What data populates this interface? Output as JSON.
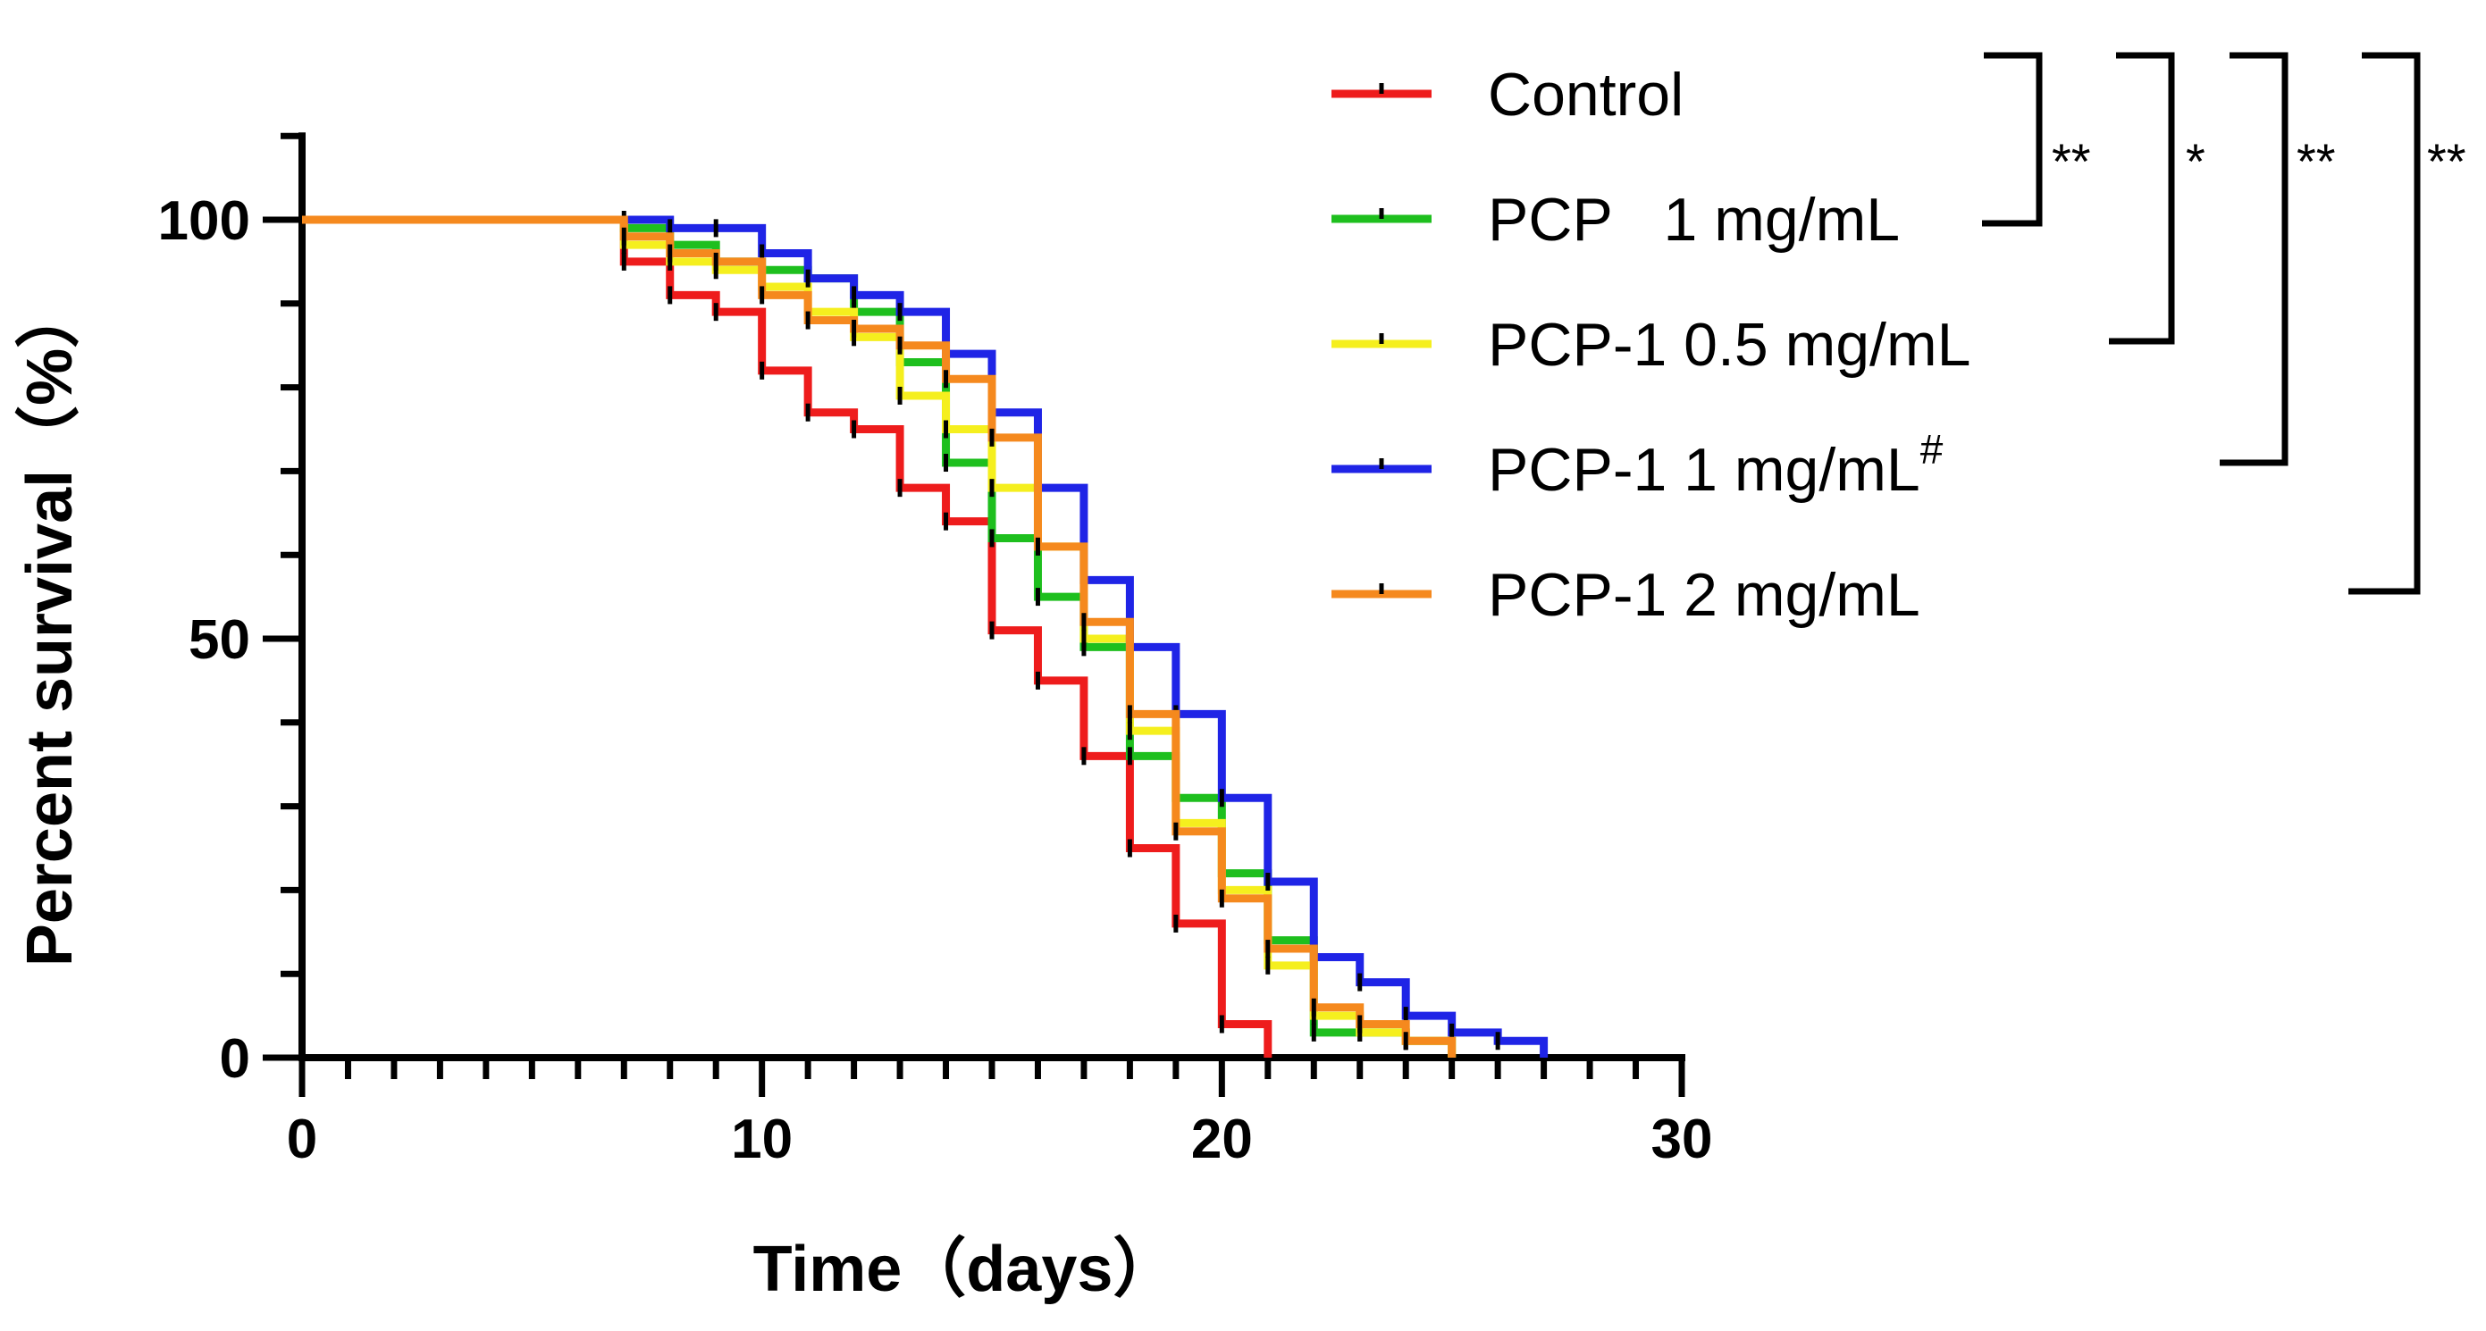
{
  "chart_data": {
    "type": "line",
    "subtype": "kaplan-meier step survival curve",
    "xlabel": "Time（days）",
    "ylabel": "Percent survival（%）",
    "xlim": [
      0,
      30
    ],
    "ylim": [
      0,
      110
    ],
    "x_ticks": [
      0,
      10,
      20,
      30
    ],
    "x_tick_labels": [
      "0",
      "10",
      "20",
      "30"
    ],
    "y_ticks": [
      0,
      50,
      100
    ],
    "y_tick_labels": [
      "0",
      "50",
      "100"
    ],
    "grid": false,
    "legend_position": "top-right",
    "series": [
      {
        "name": "Control",
        "legend_main": "Control",
        "legend_sup": "",
        "color": "#ee1c1c",
        "x": [
          0,
          7,
          8,
          9,
          10,
          11,
          12,
          13,
          14,
          15,
          16,
          17,
          18,
          19,
          20,
          21
        ],
        "y": [
          100,
          95,
          91,
          89,
          82,
          77,
          75,
          68,
          64,
          51,
          45,
          36,
          25,
          16,
          4,
          0
        ]
      },
      {
        "name": "PCP 1 mg/mL",
        "legend_main": "PCP   1 mg/mL",
        "legend_sup": "",
        "color": "#1ebf1e",
        "x": [
          0,
          7,
          8,
          9,
          10,
          11,
          12,
          13,
          14,
          15,
          16,
          17,
          18,
          19,
          20,
          21,
          22,
          23,
          24,
          25
        ],
        "y": [
          100,
          99,
          97,
          95,
          94,
          93,
          89,
          83,
          71,
          62,
          55,
          49,
          36,
          31,
          22,
          14,
          3,
          3,
          2,
          0
        ]
      },
      {
        "name": "PCP-1 0.5 mg/mL",
        "legend_main": "PCP-1 0.5 mg/mL",
        "legend_sup": "",
        "color": "#f5ef1e",
        "x": [
          0,
          7,
          8,
          9,
          10,
          11,
          12,
          13,
          14,
          15,
          16,
          17,
          18,
          19,
          20,
          21,
          22,
          23,
          24,
          25
        ],
        "y": [
          100,
          97,
          95,
          94,
          92,
          89,
          86,
          79,
          75,
          68,
          61,
          50,
          39,
          28,
          20,
          11,
          5,
          3,
          2,
          0
        ]
      },
      {
        "name": "PCP-1 1 mg/mL#",
        "legend_main": "PCP-1 1 mg/mL",
        "legend_sup": "#",
        "color": "#1f24e6",
        "x": [
          0,
          7,
          8,
          9,
          10,
          11,
          12,
          13,
          14,
          15,
          16,
          17,
          18,
          19,
          20,
          21,
          22,
          23,
          24,
          25,
          26,
          27
        ],
        "y": [
          100,
          100,
          99,
          99,
          96,
          93,
          91,
          89,
          84,
          77,
          68,
          57,
          49,
          41,
          31,
          21,
          12,
          9,
          5,
          3,
          2,
          0
        ]
      },
      {
        "name": "PCP-1 2 mg/mL",
        "legend_main": "PCP-1 2 mg/mL",
        "legend_sup": "",
        "color": "#f5891e",
        "x": [
          0,
          7,
          8,
          9,
          10,
          11,
          12,
          13,
          14,
          15,
          16,
          17,
          18,
          19,
          20,
          21,
          22,
          23,
          24,
          25
        ],
        "y": [
          100,
          98,
          96,
          95,
          91,
          88,
          87,
          85,
          81,
          74,
          61,
          52,
          41,
          27,
          19,
          13,
          6,
          4,
          2,
          0
        ]
      }
    ],
    "significance": [
      {
        "label": "**",
        "pair": [
          "Control",
          "PCP 1 mg/mL"
        ]
      },
      {
        "label": "*",
        "pair": [
          "Control",
          "PCP-1 0.5 mg/mL"
        ]
      },
      {
        "label": "**",
        "pair": [
          "Control",
          "PCP-1 1 mg/mL#"
        ]
      },
      {
        "label": "**",
        "pair": [
          "Control",
          "PCP-1 2 mg/mL"
        ]
      }
    ]
  }
}
